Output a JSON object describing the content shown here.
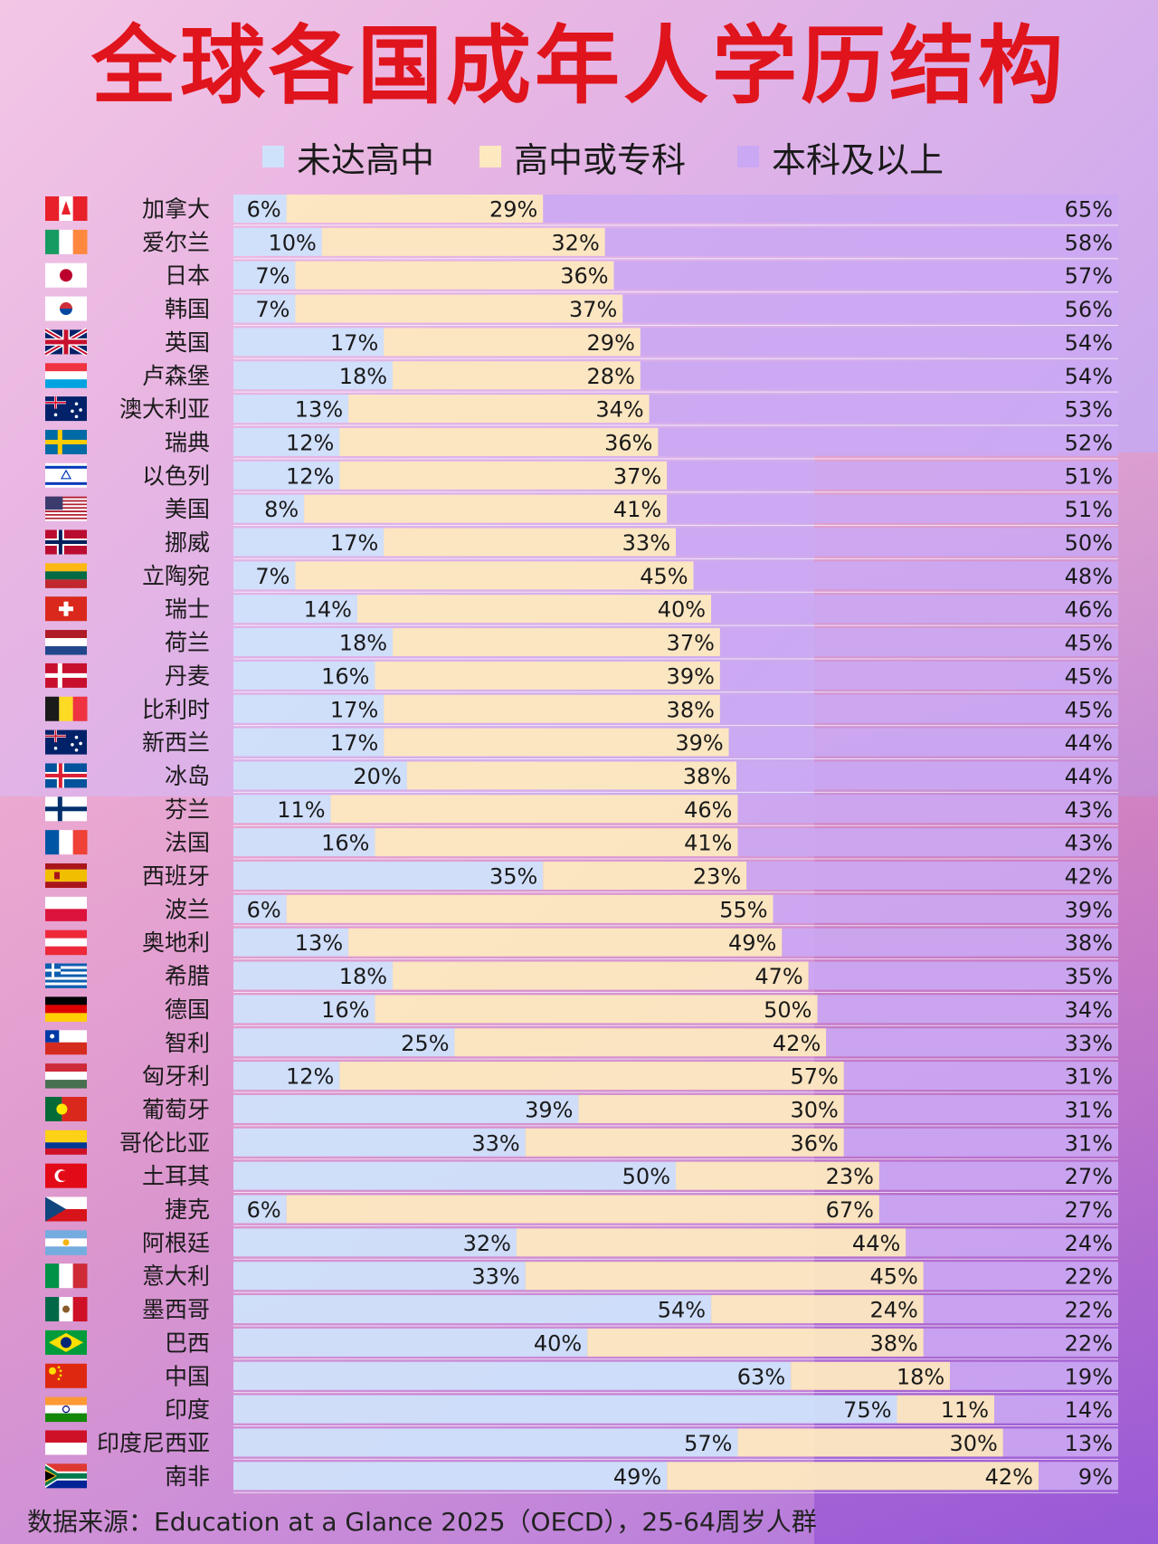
{
  "title": "全球各国成年人学历结构",
  "legend": [
    {
      "label": "未达高中",
      "color": "#cfe2fb"
    },
    {
      "label": "高中或专科",
      "color": "#fde9c0"
    },
    {
      "label": "本科及以上",
      "color": "#cba8f3"
    }
  ],
  "source": "数据来源：Education at a Glance 2025（OECD），25-64周岁人群",
  "chart_data": {
    "type": "bar",
    "stacked": true,
    "orientation": "horizontal",
    "title": "全球各国成年人学历结构",
    "xlim": [
      0,
      100
    ],
    "series": [
      {
        "name": "未达高中",
        "values": [
          6,
          10,
          7,
          7,
          17,
          18,
          13,
          12,
          12,
          8,
          17,
          7,
          14,
          18,
          16,
          17,
          17,
          20,
          11,
          16,
          35,
          6,
          13,
          18,
          16,
          25,
          12,
          39,
          33,
          50,
          6,
          32,
          33,
          54,
          40,
          63,
          75,
          57,
          49
        ]
      },
      {
        "name": "高中或专科",
        "values": [
          29,
          32,
          36,
          37,
          29,
          28,
          34,
          36,
          37,
          41,
          33,
          45,
          40,
          37,
          39,
          38,
          39,
          38,
          46,
          41,
          23,
          55,
          49,
          47,
          50,
          42,
          57,
          30,
          36,
          23,
          67,
          44,
          45,
          24,
          38,
          18,
          11,
          30,
          42
        ]
      },
      {
        "name": "本科及以上",
        "values": [
          65,
          58,
          57,
          56,
          54,
          54,
          53,
          52,
          51,
          51,
          50,
          48,
          46,
          45,
          45,
          45,
          44,
          44,
          43,
          43,
          42,
          39,
          38,
          35,
          34,
          33,
          31,
          31,
          31,
          27,
          27,
          24,
          22,
          22,
          22,
          19,
          14,
          13,
          9
        ]
      }
    ],
    "categories": [
      "加拿大",
      "爱尔兰",
      "日本",
      "韩国",
      "英国",
      "卢森堡",
      "澳大利亚",
      "瑞典",
      "以色列",
      "美国",
      "挪威",
      "立陶宛",
      "瑞士",
      "荷兰",
      "丹麦",
      "比利时",
      "新西兰",
      "冰岛",
      "芬兰",
      "法国",
      "西班牙",
      "波兰",
      "奥地利",
      "希腊",
      "德国",
      "智利",
      "匈牙利",
      "葡萄牙",
      "哥伦比亚",
      "土耳其",
      "捷克",
      "阿根廷",
      "意大利",
      "墨西哥",
      "巴西",
      "中国",
      "印度",
      "印度尼西亚",
      "南非"
    ],
    "flags": [
      {
        "type": "v3",
        "colors": [
          "#e8202a",
          "#ffffff",
          "#e8202a"
        ],
        "mark": "maple",
        "markColor": "#e8202a"
      },
      {
        "type": "v3",
        "colors": [
          "#169b62",
          "#ffffff",
          "#ff883e"
        ]
      },
      {
        "type": "dot",
        "colors": [
          "#ffffff"
        ],
        "markColor": "#bc002d"
      },
      {
        "type": "dot",
        "colors": [
          "#ffffff"
        ],
        "markColor": "#cd2e3a",
        "mark2": "#0047a0"
      },
      {
        "type": "uk",
        "colors": [
          "#012169",
          "#ffffff",
          "#c8102e"
        ]
      },
      {
        "type": "h3",
        "colors": [
          "#ef3340",
          "#ffffff",
          "#00a3e0"
        ]
      },
      {
        "type": "au",
        "colors": [
          "#012169",
          "#ffffff",
          "#e4002b"
        ]
      },
      {
        "type": "nordic",
        "colors": [
          "#006aa7",
          "#fecc02"
        ]
      },
      {
        "type": "il",
        "colors": [
          "#ffffff",
          "#0038b8"
        ]
      },
      {
        "type": "us",
        "colors": [
          "#b22234",
          "#ffffff",
          "#3c3b6e"
        ]
      },
      {
        "type": "nordic2",
        "colors": [
          "#ba0c2f",
          "#ffffff",
          "#00205b"
        ]
      },
      {
        "type": "h3",
        "colors": [
          "#fdb913",
          "#006a44",
          "#c1272d"
        ]
      },
      {
        "type": "ch",
        "colors": [
          "#da291c",
          "#ffffff"
        ]
      },
      {
        "type": "h3",
        "colors": [
          "#ae1c28",
          "#ffffff",
          "#21468b"
        ]
      },
      {
        "type": "nordic",
        "colors": [
          "#c8102e",
          "#ffffff"
        ]
      },
      {
        "type": "v3",
        "colors": [
          "#1a1a1a",
          "#fdda24",
          "#ef3340"
        ]
      },
      {
        "type": "au",
        "colors": [
          "#012169",
          "#ffffff",
          "#c8102e"
        ]
      },
      {
        "type": "nordic2",
        "colors": [
          "#02529c",
          "#ffffff",
          "#dc1e35"
        ]
      },
      {
        "type": "nordic",
        "colors": [
          "#ffffff",
          "#002f6c"
        ]
      },
      {
        "type": "v3",
        "colors": [
          "#0055a4",
          "#ffffff",
          "#ef4135"
        ]
      },
      {
        "type": "es",
        "colors": [
          "#aa151b",
          "#f1bf00",
          "#aa151b"
        ]
      },
      {
        "type": "h2",
        "colors": [
          "#ffffff",
          "#dc143c"
        ]
      },
      {
        "type": "h3",
        "colors": [
          "#ed2939",
          "#ffffff",
          "#ed2939"
        ]
      },
      {
        "type": "gr",
        "colors": [
          "#0d5eaf",
          "#ffffff"
        ]
      },
      {
        "type": "h3",
        "colors": [
          "#000000",
          "#dd0000",
          "#ffce00"
        ]
      },
      {
        "type": "cl",
        "colors": [
          "#0039a6",
          "#ffffff",
          "#d52b1e"
        ]
      },
      {
        "type": "h3",
        "colors": [
          "#ce2939",
          "#ffffff",
          "#477050"
        ]
      },
      {
        "type": "pt",
        "colors": [
          "#046a38",
          "#da291c",
          "#ffe900"
        ]
      },
      {
        "type": "co",
        "colors": [
          "#fcd116",
          "#003893",
          "#ce1126"
        ]
      },
      {
        "type": "tr",
        "colors": [
          "#e30a17",
          "#ffffff"
        ]
      },
      {
        "type": "cz",
        "colors": [
          "#ffffff",
          "#d7141a",
          "#11457e"
        ]
      },
      {
        "type": "h3",
        "colors": [
          "#74acdf",
          "#ffffff",
          "#74acdf"
        ],
        "mark": "sun",
        "markColor": "#f6b40e"
      },
      {
        "type": "v3",
        "colors": [
          "#009246",
          "#ffffff",
          "#ce2b37"
        ]
      },
      {
        "type": "v3",
        "colors": [
          "#006847",
          "#ffffff",
          "#ce1126"
        ],
        "mark": "eagle",
        "markColor": "#8a5a2b"
      },
      {
        "type": "br",
        "colors": [
          "#009c3b",
          "#ffdf00",
          "#002776"
        ]
      },
      {
        "type": "cn",
        "colors": [
          "#de2910",
          "#ffde00"
        ]
      },
      {
        "type": "h3",
        "colors": [
          "#ff9933",
          "#ffffff",
          "#138808"
        ],
        "mark": "wheel",
        "markColor": "#000080"
      },
      {
        "type": "h2",
        "colors": [
          "#ce1126",
          "#ffffff"
        ]
      },
      {
        "type": "za",
        "colors": [
          "#de3831",
          "#ffffff",
          "#002395",
          "#007a4d",
          "#000000",
          "#ffb612"
        ]
      }
    ]
  }
}
